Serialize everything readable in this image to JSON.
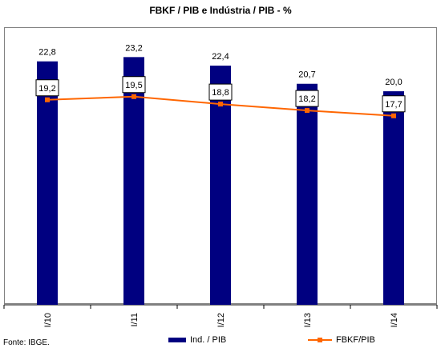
{
  "chart_data": {
    "type": "bar",
    "title": "FBKF / PIB e Indústria / PIB - %",
    "categories": [
      "I/10",
      "I/11",
      "I/12",
      "I/13",
      "I/14"
    ],
    "series": [
      {
        "name": "Ind. / PIB",
        "kind": "bar",
        "color": "#000080",
        "values": [
          22.8,
          23.2,
          22.4,
          20.7,
          20.0
        ],
        "labels": [
          "22,8",
          "23,2",
          "22,4",
          "20,7",
          "20,0"
        ]
      },
      {
        "name": "FBKF/PIB",
        "kind": "line",
        "color": "#FF6600",
        "values": [
          19.2,
          19.5,
          18.8,
          18.2,
          17.7
        ],
        "labels": [
          "19,2",
          "19,5",
          "18,8",
          "18,2",
          "17,7"
        ]
      }
    ],
    "ylim": [
      0,
      26
    ],
    "grid": false,
    "legend_position": "bottom-right"
  },
  "source": "Fonte: IBGE."
}
